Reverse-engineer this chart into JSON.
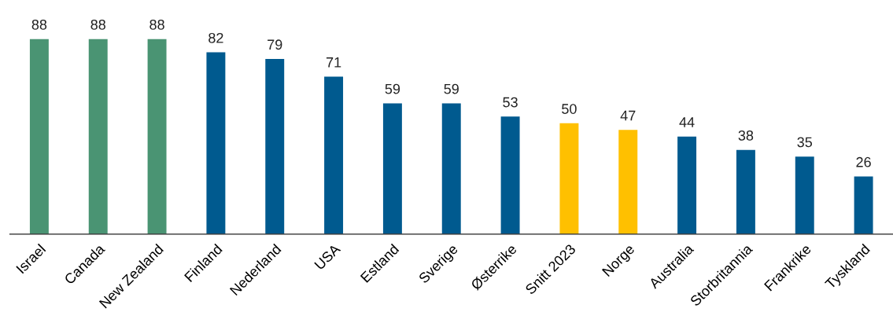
{
  "chart_data": {
    "type": "bar",
    "categories": [
      "Israel",
      "Canada",
      "New Zealand",
      "Finland",
      "Nederland",
      "USA",
      "Estland",
      "Sverige",
      "Østerrike",
      "Snitt 2023",
      "Norge",
      "Australia",
      "Storbritannia",
      "Frankrike",
      "Tyskland"
    ],
    "values": [
      88,
      88,
      88,
      82,
      79,
      71,
      59,
      59,
      53,
      50,
      47,
      44,
      38,
      35,
      26
    ],
    "colors": [
      "#4a9473",
      "#4a9473",
      "#4a9473",
      "#005a8f",
      "#005a8f",
      "#005a8f",
      "#005a8f",
      "#005a8f",
      "#005a8f",
      "#ffc000",
      "#ffc000",
      "#005a8f",
      "#005a8f",
      "#005a8f",
      "#005a8f"
    ],
    "data_labels": true,
    "tick_labels": "x",
    "grid": false,
    "legend": false
  }
}
